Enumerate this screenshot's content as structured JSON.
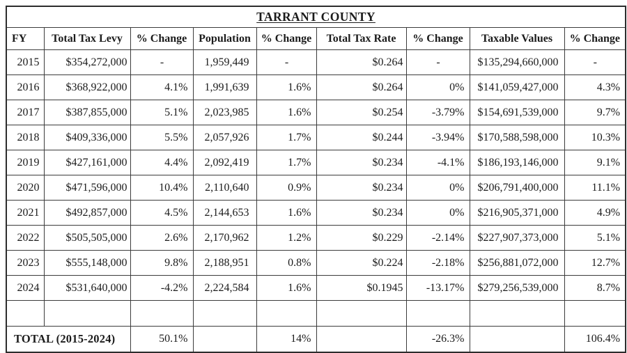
{
  "title": "TARRANT COUNTY",
  "table": {
    "columns": [
      "FY",
      "Total Tax Levy",
      "% Change",
      "Population",
      "% Change",
      "Total Tax Rate",
      "% Change",
      "Taxable Values",
      "% Change"
    ],
    "rows": [
      [
        "2015",
        "$354,272,000",
        "-",
        "1,959,449",
        "-",
        "$0.264",
        "-",
        "$135,294,660,000",
        "-"
      ],
      [
        "2016",
        "$368,922,000",
        "4.1%",
        "1,991,639",
        "1.6%",
        "$0.264",
        "0%",
        "$141,059,427,000",
        "4.3%"
      ],
      [
        "2017",
        "$387,855,000",
        "5.1%",
        "2,023,985",
        "1.6%",
        "$0.254",
        "-3.79%",
        "$154,691,539,000",
        "9.7%"
      ],
      [
        "2018",
        "$409,336,000",
        "5.5%",
        "2,057,926",
        "1.7%",
        "$0.244",
        "-3.94%",
        "$170,588,598,000",
        "10.3%"
      ],
      [
        "2019",
        "$427,161,000",
        "4.4%",
        "2,092,419",
        "1.7%",
        "$0.234",
        "-4.1%",
        "$186,193,146,000",
        "9.1%"
      ],
      [
        "2020",
        "$471,596,000",
        "10.4%",
        "2,110,640",
        "0.9%",
        "$0.234",
        "0%",
        "$206,791,400,000",
        "11.1%"
      ],
      [
        "2021",
        "$492,857,000",
        "4.5%",
        "2,144,653",
        "1.6%",
        "$0.234",
        "0%",
        "$216,905,371,000",
        "4.9%"
      ],
      [
        "2022",
        "$505,505,000",
        "2.6%",
        "2,170,962",
        "1.2%",
        "$0.229",
        "-2.14%",
        "$227,907,373,000",
        "5.1%"
      ],
      [
        "2023",
        "$555,148,000",
        "9.8%",
        "2,188,951",
        "0.8%",
        "$0.224",
        "-2.18%",
        "$256,881,072,000",
        "12.7%"
      ],
      [
        "2024",
        "$531,640,000",
        "-4.2%",
        "2,224,584",
        "1.6%",
        "$0.1945",
        "-13.17%",
        "$279,256,539,000",
        "8.7%"
      ]
    ],
    "total_row": {
      "label": "TOTAL (2015-2024)",
      "values": [
        "50.1%",
        "",
        "14%",
        "",
        "-26.3%",
        "",
        "106.4%"
      ]
    }
  }
}
